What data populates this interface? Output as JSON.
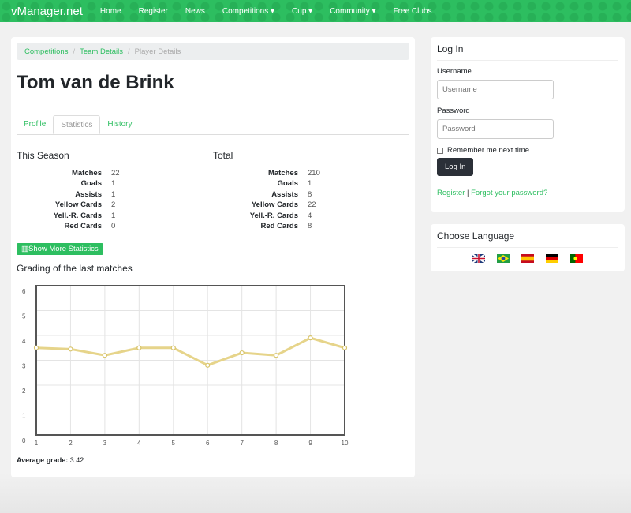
{
  "nav": {
    "brand": "vManager.net",
    "items": [
      "Home",
      "Register",
      "News",
      "Competitions ▾",
      "Cup ▾",
      "Community ▾",
      "Free Clubs"
    ]
  },
  "breadcrumb": [
    "Competitions",
    "Team Details",
    "Player Details"
  ],
  "player": {
    "name": "Tom van de Brink"
  },
  "tabs": [
    "Profile",
    "Statistics",
    "History"
  ],
  "season": {
    "title": "This Season",
    "rows": [
      {
        "k": "Matches",
        "v": "22"
      },
      {
        "k": "Goals",
        "v": "1"
      },
      {
        "k": "Assists",
        "v": "1"
      },
      {
        "k": "Yellow Cards",
        "v": "2"
      },
      {
        "k": "Yell.-R. Cards",
        "v": "1"
      },
      {
        "k": "Red Cards",
        "v": "0"
      }
    ]
  },
  "total": {
    "title": "Total",
    "rows": [
      {
        "k": "Matches",
        "v": "210"
      },
      {
        "k": "Goals",
        "v": "1"
      },
      {
        "k": "Assists",
        "v": "8"
      },
      {
        "k": "Yellow Cards",
        "v": "22"
      },
      {
        "k": "Yell.-R. Cards",
        "v": "4"
      },
      {
        "k": "Red Cards",
        "v": "8"
      }
    ]
  },
  "more_stats": "Show More Statistics",
  "grading_title": "Grading of the last matches",
  "chart_data": {
    "type": "line",
    "x": [
      1,
      2,
      3,
      4,
      5,
      6,
      7,
      8,
      9,
      10
    ],
    "values": [
      3.5,
      3.45,
      3.2,
      3.5,
      3.5,
      2.8,
      3.3,
      3.2,
      3.9,
      3.5
    ],
    "ylim": [
      0,
      6
    ],
    "yticks": [
      0,
      1,
      2,
      3,
      4,
      5,
      6
    ],
    "grid": true,
    "color": "#e6d48a"
  },
  "average": {
    "label": "Average grade:",
    "value": "3.42"
  },
  "login": {
    "title": "Log In",
    "username_label": "Username",
    "username_placeholder": "Username",
    "password_label": "Password",
    "password_placeholder": "Password",
    "remember": "Remember me next time",
    "button": "Log In",
    "register": "Register",
    "sep": "|",
    "forgot": "Forgot your password?"
  },
  "language": {
    "title": "Choose Language",
    "flags": [
      "uk-flag",
      "brazil-flag",
      "spain-flag",
      "germany-flag",
      "portugal-flag"
    ]
  }
}
